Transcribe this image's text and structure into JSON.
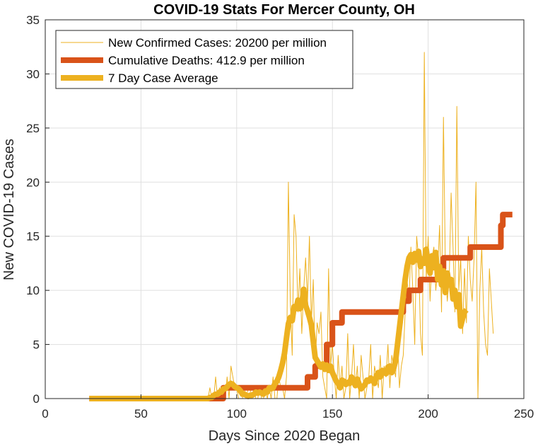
{
  "chart_data": {
    "type": "line",
    "title": "COVID-19 Stats For Mercer County, OH",
    "xlabel": "Days Since 2020 Began",
    "ylabel": "New COVID-19 Cases",
    "xlim": [
      0,
      250
    ],
    "ylim": [
      0,
      35
    ],
    "xticks": [
      0,
      50,
      100,
      150,
      200,
      250
    ],
    "yticks": [
      0,
      5,
      10,
      15,
      20,
      25,
      30,
      35
    ],
    "grid": true,
    "legend_position": "top-left",
    "series": [
      {
        "name": "New Confirmed Cases: 20200 per million",
        "color": "#EDB120",
        "style": "thin",
        "x_start": 23,
        "values": [
          0,
          0,
          0,
          0,
          0,
          0,
          0,
          0,
          0,
          0,
          0,
          0,
          0,
          0,
          0,
          0,
          0,
          0,
          0,
          0,
          0,
          0,
          0,
          0,
          0,
          0,
          0,
          0,
          0,
          0,
          0,
          0,
          0,
          0,
          0,
          0,
          0,
          0,
          0,
          0,
          0,
          0,
          0,
          0,
          0,
          0,
          0,
          0,
          0,
          0,
          0,
          0,
          0,
          0,
          0,
          0,
          0,
          0,
          0,
          0,
          0,
          0,
          0,
          1,
          0,
          0,
          2,
          0,
          1,
          0,
          1,
          0,
          2,
          0,
          3,
          2,
          1,
          1,
          0,
          0,
          0,
          1,
          0,
          1,
          1,
          0,
          1,
          0,
          0,
          1,
          0,
          0,
          1,
          0,
          1,
          0,
          2,
          0,
          0,
          2,
          1,
          1,
          0,
          2,
          20,
          9,
          4,
          17,
          15,
          8,
          12,
          6,
          10,
          13,
          9,
          15,
          7,
          11,
          3,
          7,
          6,
          8,
          2,
          1,
          0,
          12,
          3,
          5,
          2,
          0,
          4,
          1,
          3,
          0,
          1,
          6,
          0,
          2,
          5,
          1,
          3,
          0,
          4,
          2,
          0,
          1,
          2,
          5,
          0,
          3,
          2,
          1,
          4,
          0,
          3,
          2,
          5,
          1,
          4,
          3,
          2,
          6,
          1,
          3,
          4,
          8,
          11,
          9,
          14,
          10,
          5,
          15,
          13,
          6,
          4,
          32,
          11,
          15,
          9,
          13,
          14,
          10,
          12,
          16,
          8,
          26,
          12,
          9,
          11,
          19,
          14,
          8,
          27,
          10,
          13,
          6,
          12,
          7,
          15,
          11,
          9,
          13,
          20,
          0,
          10,
          14,
          8,
          5,
          4,
          12,
          9,
          6
        ]
      },
      {
        "name": "Cumulative Deaths: 412.9 per million",
        "color": "#D95319",
        "style": "thick",
        "steps": [
          [
            23,
            0
          ],
          [
            93,
            1
          ],
          [
            120,
            1
          ],
          [
            137,
            2
          ],
          [
            141,
            3
          ],
          [
            147,
            5
          ],
          [
            150,
            7
          ],
          [
            155,
            8
          ],
          [
            187,
            9
          ],
          [
            190,
            10
          ],
          [
            196,
            11
          ],
          [
            205,
            12
          ],
          [
            208,
            13
          ],
          [
            222,
            14
          ],
          [
            238,
            16
          ],
          [
            239,
            17
          ],
          [
            244,
            17
          ]
        ]
      },
      {
        "name": "7 Day Case Average",
        "color": "#EDB120",
        "style": "thick",
        "x_start": 23,
        "values": [
          0,
          0,
          0,
          0,
          0,
          0,
          0,
          0,
          0,
          0,
          0,
          0,
          0,
          0,
          0,
          0,
          0,
          0,
          0,
          0,
          0,
          0,
          0,
          0,
          0,
          0,
          0,
          0,
          0,
          0,
          0,
          0,
          0,
          0,
          0,
          0,
          0,
          0,
          0,
          0,
          0,
          0,
          0,
          0,
          0,
          0,
          0,
          0,
          0,
          0,
          0,
          0,
          0,
          0,
          0,
          0,
          0,
          0,
          0,
          0,
          0,
          0,
          0,
          0.1,
          0.1,
          0.3,
          0.4,
          0.4,
          0.6,
          0.6,
          0.9,
          0.9,
          1.1,
          1.3,
          1.4,
          1.3,
          1.1,
          1.0,
          0.9,
          0.7,
          0.4,
          0.4,
          0.3,
          0.2,
          0.3,
          0.3,
          0.4,
          0.6,
          0.5,
          0.6,
          0.5,
          0.4,
          0.7,
          0.6,
          1.0,
          0.9,
          1.0,
          1.4,
          1.6,
          2.0,
          2.6,
          3.3,
          4.2,
          5.6,
          6.9,
          7.5,
          7.2,
          8.5,
          8.3,
          9.1,
          8.3,
          8.7,
          10.1,
          8.6,
          8.1,
          7.5,
          6.8,
          5.3,
          3.8,
          3.5,
          3.2,
          2.9,
          3.2,
          2.7,
          3.1,
          2.6,
          3.0,
          2.4,
          2.0,
          1.6,
          1.4,
          1.0,
          1.7,
          1.6,
          1.3,
          1.5,
          1.4,
          2.0,
          1.6,
          1.2,
          1.8,
          1.3,
          0.9,
          1.1,
          1.3,
          1.7,
          1.6,
          1.9,
          1.7,
          1.4,
          2.1,
          2.4,
          2.0,
          2.6,
          2.5,
          2.3,
          2.9,
          3.0,
          2.4,
          2.8,
          3.5,
          5.0,
          6.5,
          8.0,
          9.5,
          11.0,
          12.2,
          13.0,
          13.3,
          12.6,
          13.4,
          12.8,
          13.6,
          12.2,
          12.9,
          12.5,
          13.8,
          12.4,
          11.6,
          13.2,
          12.1,
          13.5,
          11.0,
          12.2,
          10.5,
          11.8,
          9.8,
          11.6,
          10.5,
          11.0,
          9.2,
          10.0,
          8.5,
          9.6,
          6.7,
          7.4,
          8.0,
          8.2
        ]
      }
    ]
  }
}
